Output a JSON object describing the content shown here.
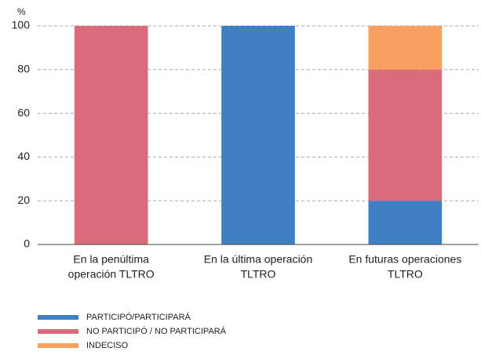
{
  "chart_data": {
    "type": "stacked_bar",
    "y_unit": "%",
    "categories": [
      [
        "En la penúltima",
        "operación TLTRO"
      ],
      [
        "En la última operación",
        "TLTRO"
      ],
      [
        "En futuras operaciones",
        "TLTRO"
      ]
    ],
    "series": [
      {
        "name": "PARTICIPÓ/PARTICIPARÁ",
        "color": "#3f7fc4",
        "values": [
          0,
          100,
          20
        ]
      },
      {
        "name": "NO PARTICIPÓ / NO PARTICIPARÁ",
        "color": "#d96b7b",
        "values": [
          100,
          0,
          60
        ]
      },
      {
        "name": "INDECISO",
        "color": "#f7a060",
        "values": [
          0,
          0,
          20
        ]
      }
    ],
    "ylim": [
      0,
      100
    ],
    "yticks": [
      0,
      20,
      40,
      60,
      80,
      100
    ],
    "grid": true
  }
}
